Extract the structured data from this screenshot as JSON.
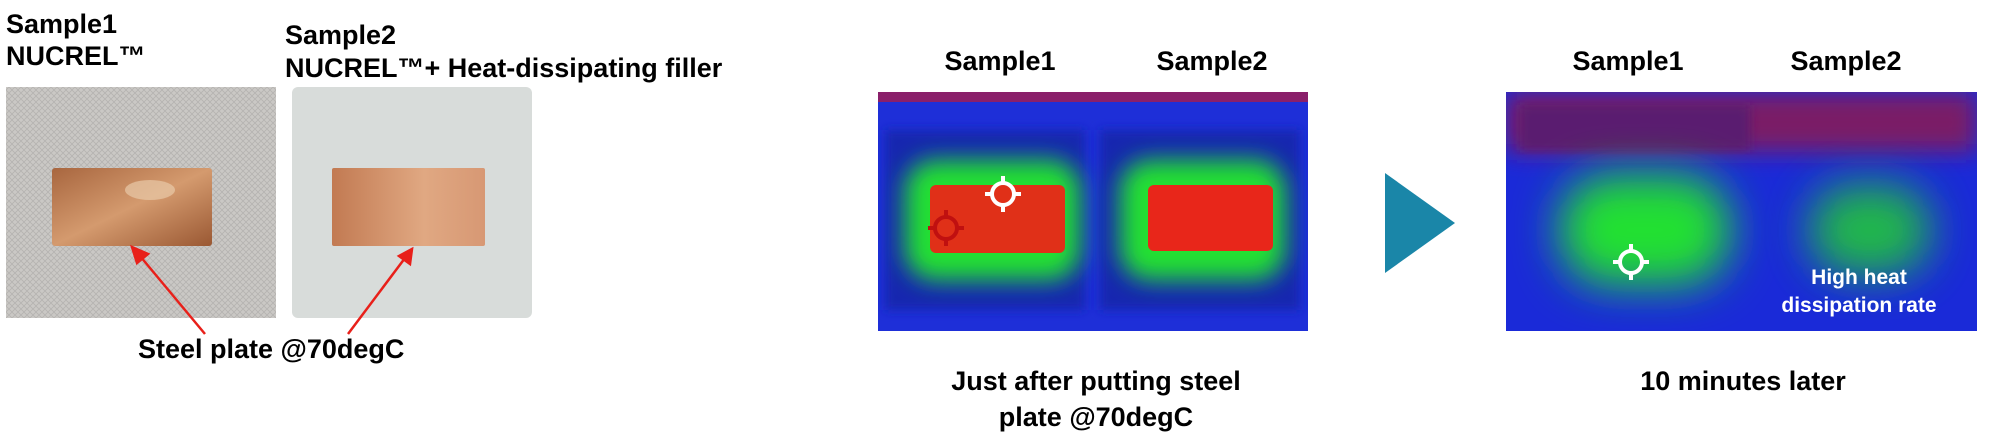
{
  "photos": {
    "sample1": {
      "label": "Sample1",
      "material": "NUCREL™"
    },
    "sample2": {
      "label": "Sample2",
      "material": "NUCREL™+ Heat-dissipating filler"
    },
    "caption": "Steel plate @70degC"
  },
  "thermal_before": {
    "labels": [
      "Sample1",
      "Sample2"
    ],
    "caption": [
      "Just after putting steel",
      "plate @70degC"
    ]
  },
  "thermal_after": {
    "labels": [
      "Sample1",
      "Sample2"
    ],
    "annotation": [
      "High heat",
      "dissipation rate"
    ],
    "caption": "10 minutes later"
  }
}
